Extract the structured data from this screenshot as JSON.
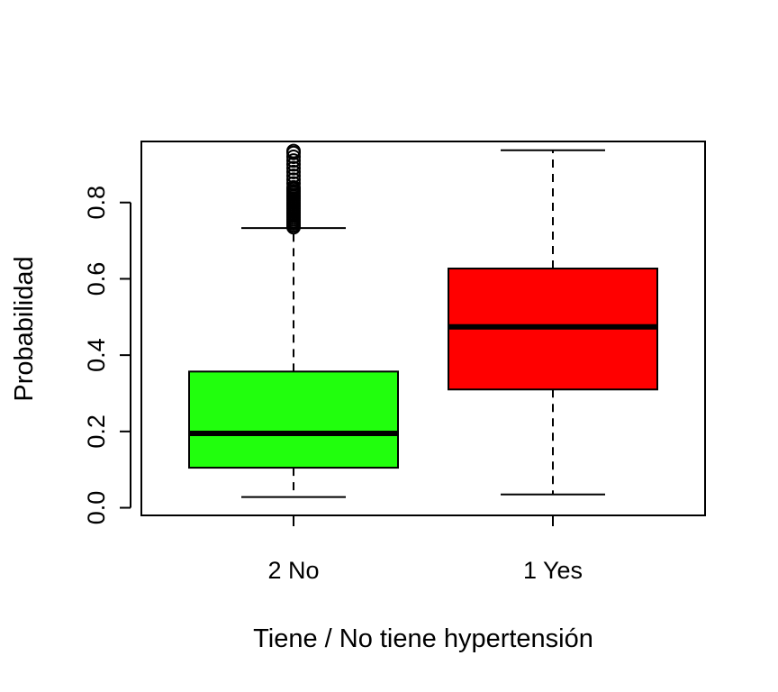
{
  "chart_data": {
    "type": "box",
    "title": "",
    "xlabel": "Tiene / No tiene hypertensión",
    "ylabel": "Probabilidad",
    "ylim": [
      -0.02,
      0.96
    ],
    "yticks": [
      0.0,
      0.2,
      0.4,
      0.6,
      0.8
    ],
    "ytick_labels": [
      "0.0",
      "0.2",
      "0.4",
      "0.6",
      "0.8"
    ],
    "categories": [
      "2 No",
      "1 Yes"
    ],
    "grid": false,
    "legend": "none",
    "boxes": [
      {
        "category": "2 No",
        "color": "#21ff0d",
        "whisker_low": 0.028,
        "q1": 0.105,
        "median": 0.195,
        "q3": 0.357,
        "whisker_high": 0.733,
        "outliers": [
          0.735,
          0.74,
          0.745,
          0.75,
          0.755,
          0.76,
          0.765,
          0.77,
          0.775,
          0.78,
          0.785,
          0.79,
          0.795,
          0.8,
          0.805,
          0.81,
          0.815,
          0.82,
          0.825,
          0.83,
          0.835,
          0.84,
          0.85,
          0.86,
          0.87,
          0.88,
          0.89,
          0.9,
          0.91,
          0.92,
          0.93,
          0.935
        ]
      },
      {
        "category": "1 Yes",
        "color": "#ff0000",
        "whisker_low": 0.035,
        "q1": 0.31,
        "median": 0.474,
        "q3": 0.627,
        "whisker_high": 0.937,
        "outliers": []
      }
    ]
  }
}
